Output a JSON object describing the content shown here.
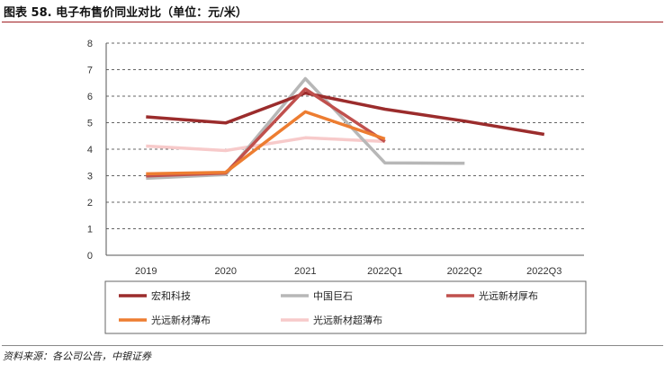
{
  "title": "图表 58. 电子布售价同业对比（单位：元/米）",
  "source": "资料来源：各公司公告，中银证券",
  "chart_data": {
    "type": "line",
    "categories": [
      "2019",
      "2020",
      "2021",
      "2022Q1",
      "2022Q2",
      "2022Q3"
    ],
    "ylim": [
      0,
      8
    ],
    "yticks": [
      "0",
      "1",
      "2",
      "3",
      "4",
      "5",
      "6",
      "7",
      "8"
    ],
    "grid": "horizontal-dashed",
    "legend_position": "bottom",
    "series": [
      {
        "name": "宏和科技",
        "color": "#9b2c2c",
        "values": [
          5.22,
          4.99,
          6.12,
          5.51,
          5.06,
          4.56
        ]
      },
      {
        "name": "中国巨石",
        "color": "#b7b7b7",
        "values": [
          2.9,
          3.04,
          6.66,
          3.48,
          3.47,
          null
        ]
      },
      {
        "name": "光远新材厚布",
        "color": "#c0504d",
        "values": [
          2.99,
          3.1,
          6.27,
          4.29,
          null,
          null
        ]
      },
      {
        "name": "光远新材薄布",
        "color": "#ed7d31",
        "values": [
          3.07,
          3.13,
          5.41,
          4.39,
          null,
          null
        ]
      },
      {
        "name": "光远新材超薄布",
        "color": "#f7caca",
        "values": [
          4.12,
          3.95,
          4.43,
          4.29,
          null,
          null
        ]
      }
    ]
  }
}
